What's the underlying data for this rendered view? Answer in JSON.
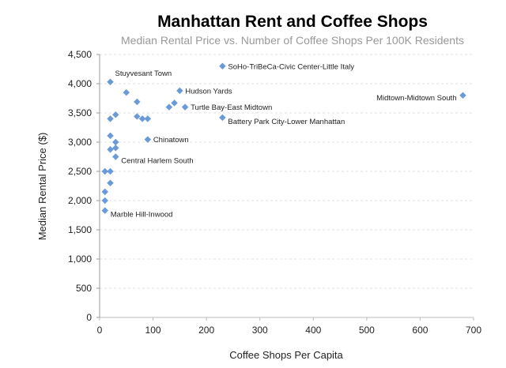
{
  "chart_data": {
    "type": "scatter",
    "title": "Manhattan Rent and Coffee Shops",
    "subtitle": "Median Rental Price vs. Number of Coffee Shops Per 100K Residents",
    "xlabel": "Coffee Shops Per Capita",
    "ylabel": "Median Rental Price ($)",
    "xlim": [
      0,
      700
    ],
    "ylim": [
      0,
      4500
    ],
    "xticks": [
      "0",
      "100",
      "200",
      "300",
      "400",
      "500",
      "600",
      "700"
    ],
    "yticks": [
      "0",
      "500",
      "1,000",
      "1,500",
      "2,000",
      "2,500",
      "3,000",
      "3,500",
      "4,000",
      "4,500"
    ],
    "grid": "horizontal dashed",
    "color": "#6a9bd8",
    "points": [
      {
        "x": 20,
        "y": 4030,
        "label": "Stuyvesant Town"
      },
      {
        "x": 50,
        "y": 3850,
        "label": ""
      },
      {
        "x": 70,
        "y": 3690,
        "label": ""
      },
      {
        "x": 20,
        "y": 3400,
        "label": ""
      },
      {
        "x": 30,
        "y": 3470,
        "label": ""
      },
      {
        "x": 70,
        "y": 3440,
        "label": ""
      },
      {
        "x": 80,
        "y": 3400,
        "label": ""
      },
      {
        "x": 90,
        "y": 3400,
        "label": ""
      },
      {
        "x": 130,
        "y": 3600,
        "label": ""
      },
      {
        "x": 140,
        "y": 3670,
        "label": ""
      },
      {
        "x": 150,
        "y": 3880,
        "label": "Hudson Yards"
      },
      {
        "x": 160,
        "y": 3600,
        "label": "Turtle Bay-East Midtown"
      },
      {
        "x": 230,
        "y": 4300,
        "label": "SoHo-TriBeCa-Civic Center-Little Italy"
      },
      {
        "x": 230,
        "y": 3420,
        "label": "Battery Park City-Lower Manhattan"
      },
      {
        "x": 680,
        "y": 3800,
        "label": "Midtown-Midtown South"
      },
      {
        "x": 90,
        "y": 3045,
        "label": "Chinatown"
      },
      {
        "x": 20,
        "y": 3110,
        "label": ""
      },
      {
        "x": 30,
        "y": 3000,
        "label": ""
      },
      {
        "x": 20,
        "y": 2875,
        "label": ""
      },
      {
        "x": 30,
        "y": 2900,
        "label": ""
      },
      {
        "x": 30,
        "y": 2750,
        "label": "Central Harlem South"
      },
      {
        "x": 10,
        "y": 2500,
        "label": ""
      },
      {
        "x": 20,
        "y": 2500,
        "label": ""
      },
      {
        "x": 20,
        "y": 2300,
        "label": ""
      },
      {
        "x": 10,
        "y": 2150,
        "label": ""
      },
      {
        "x": 10,
        "y": 2000,
        "label": ""
      },
      {
        "x": 10,
        "y": 1830,
        "label": "Marble Hill-Inwood"
      }
    ]
  }
}
